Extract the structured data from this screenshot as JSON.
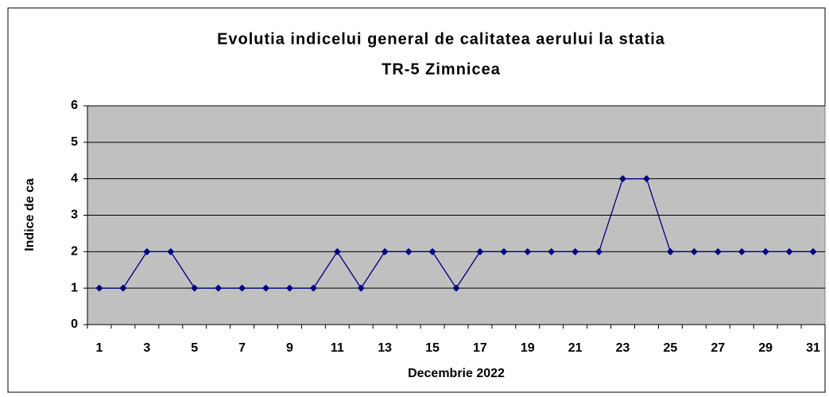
{
  "chart_data": {
    "type": "line",
    "title": [
      "Evolutia indicelui general de calitatea aerului la statia",
      "TR-5 Zimnicea"
    ],
    "x_label": "Decembrie 2022",
    "y_label": "Indice de ca",
    "categories": [
      "1",
      null,
      "3",
      null,
      "5",
      null,
      "7",
      null,
      "9",
      null,
      "11",
      null,
      "13",
      null,
      "15",
      null,
      "17",
      null,
      "19",
      null,
      "21",
      null,
      "23",
      null,
      "25",
      null,
      "27",
      null,
      "29",
      null,
      "31"
    ],
    "series": [
      {
        "name": "Indice",
        "color": "#000080",
        "values": [
          1,
          1,
          2,
          2,
          1,
          1,
          1,
          1,
          1,
          1,
          2,
          1,
          2,
          2,
          2,
          1,
          2,
          2,
          2,
          2,
          2,
          2,
          4,
          4,
          2,
          2,
          2,
          2,
          2,
          2,
          2
        ]
      }
    ],
    "ylim": [
      0,
      6
    ],
    "yticks": [
      0,
      1,
      2,
      3,
      4,
      5,
      6
    ],
    "grid": true,
    "plot_background": "#c0c0c0"
  }
}
